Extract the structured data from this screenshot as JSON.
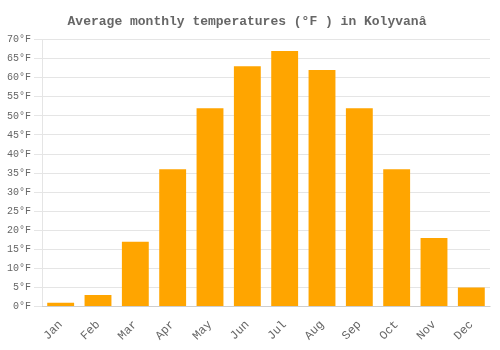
{
  "chart_data": {
    "type": "bar",
    "title": "Average monthly temperatures (°F ) in Kolyvanâ",
    "categories": [
      "Jan",
      "Feb",
      "Mar",
      "Apr",
      "May",
      "Jun",
      "Jul",
      "Aug",
      "Sep",
      "Oct",
      "Nov",
      "Dec"
    ],
    "values": [
      1,
      3,
      17,
      36,
      52,
      63,
      67,
      62,
      52,
      36,
      18,
      5
    ],
    "color": "#FFA500",
    "ylim": [
      0,
      70
    ],
    "yticks": [
      {
        "value": 0,
        "label": "0°F"
      },
      {
        "value": 5,
        "label": "5°F"
      },
      {
        "value": 10,
        "label": "10°F"
      },
      {
        "value": 15,
        "label": "15°F"
      },
      {
        "value": 20,
        "label": "20°F"
      },
      {
        "value": 25,
        "label": "25°F"
      },
      {
        "value": 30,
        "label": "30°F"
      },
      {
        "value": 35,
        "label": "35°F"
      },
      {
        "value": 40,
        "label": "40°F"
      },
      {
        "value": 45,
        "label": "45°F"
      },
      {
        "value": 50,
        "label": "50°F"
      },
      {
        "value": 55,
        "label": "55°F"
      },
      {
        "value": 60,
        "label": "60°F"
      },
      {
        "value": 65,
        "label": "65°F"
      },
      {
        "value": 70,
        "label": "70°F"
      }
    ],
    "grid": true
  }
}
